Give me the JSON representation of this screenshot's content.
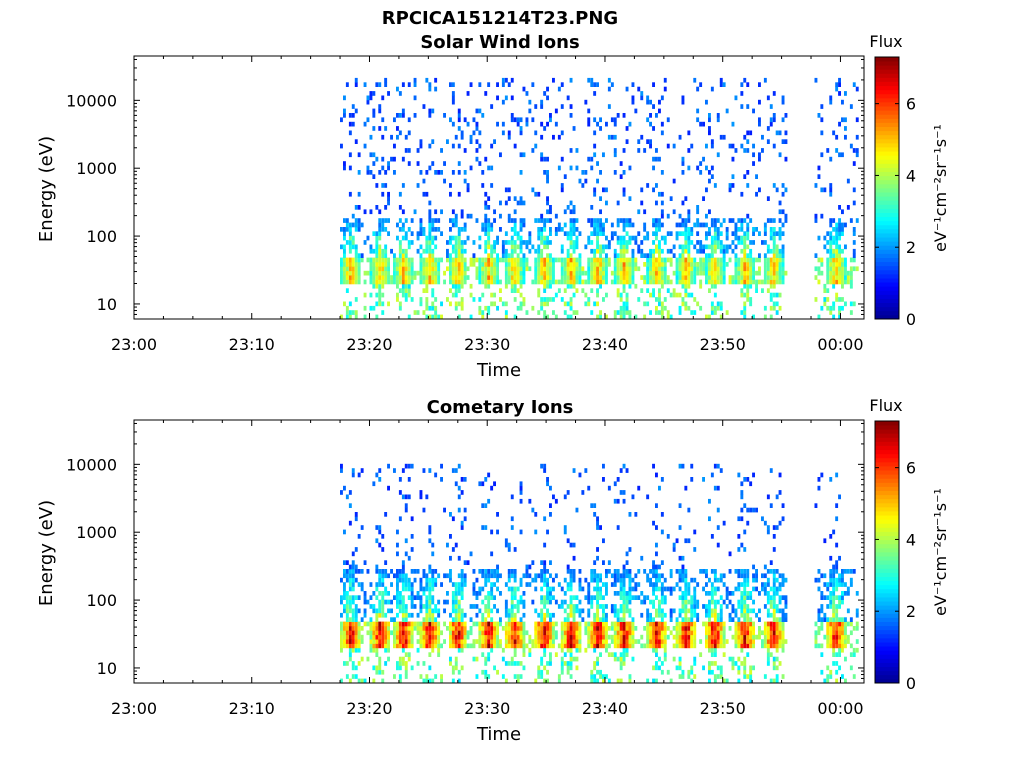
{
  "figure_title": "RPCICA151214T23.PNG",
  "colors": {
    "colormap": [
      "#00008f",
      "#0000ff",
      "#0080ff",
      "#00ffff",
      "#80ff80",
      "#ffff00",
      "#ff8000",
      "#ff0000",
      "#800000"
    ]
  },
  "chart_data": [
    {
      "type": "heatmap",
      "title": "Solar Wind Ions",
      "xlabel": "Time",
      "ylabel": "Energy (eV)",
      "y_scale": "log",
      "ylim": [
        6,
        45000
      ],
      "x_ticks": [
        "23:00",
        "23:10",
        "23:20",
        "23:30",
        "23:40",
        "23:50",
        "00:00"
      ],
      "y_ticks": [
        "10",
        "100",
        "1000",
        "10000"
      ],
      "x_range_minutes": [
        0,
        62
      ],
      "data_intervals_minutes": [
        [
          17.5,
          55.5
        ],
        [
          57.8,
          61.5
        ]
      ],
      "colorbar": {
        "label": "Flux",
        "units": "eV⁻¹cm⁻²sr⁻¹s⁻¹",
        "ticks": [
          "0",
          "2",
          "4",
          "6"
        ],
        "range": [
          0,
          7.3
        ]
      },
      "bursts_minutes": [
        18.3,
        20.8,
        22.8,
        25.0,
        27.4,
        30.0,
        32.2,
        34.7,
        37.0,
        39.3,
        41.5,
        44.3,
        46.8,
        49.2,
        51.8,
        54.2,
        59.5
      ],
      "band_energy_eV": [
        20,
        45
      ],
      "band_peak_flux": 5.4,
      "sparse_energy_eV": [
        60,
        20000
      ]
    },
    {
      "type": "heatmap",
      "title": "Cometary Ions",
      "xlabel": "Time",
      "ylabel": "Energy (eV)",
      "y_scale": "log",
      "ylim": [
        6,
        45000
      ],
      "x_ticks": [
        "23:00",
        "23:10",
        "23:20",
        "23:30",
        "23:40",
        "23:50",
        "00:00"
      ],
      "y_ticks": [
        "10",
        "100",
        "1000",
        "10000"
      ],
      "x_range_minutes": [
        0,
        62
      ],
      "data_intervals_minutes": [
        [
          17.5,
          55.5
        ],
        [
          57.8,
          61.5
        ]
      ],
      "colorbar": {
        "label": "Flux",
        "units": "eV⁻¹cm⁻²sr⁻¹s⁻¹",
        "ticks": [
          "0",
          "2",
          "4",
          "6"
        ],
        "range": [
          0,
          7.3
        ]
      },
      "bursts_minutes": [
        18.3,
        20.8,
        22.8,
        25.0,
        27.4,
        30.0,
        32.2,
        34.7,
        37.0,
        39.3,
        41.5,
        44.3,
        46.8,
        49.2,
        51.8,
        54.2,
        59.5
      ],
      "band_energy_eV": [
        20,
        45
      ],
      "band_peak_flux": 7.1,
      "sparse_energy_eV": [
        100,
        10000
      ]
    }
  ]
}
